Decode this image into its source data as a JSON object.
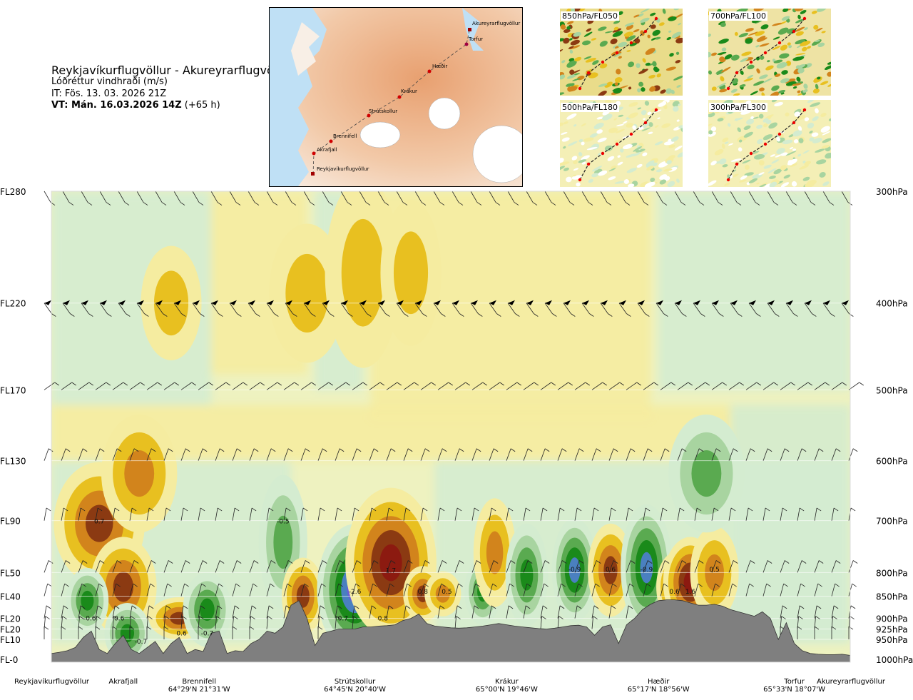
{
  "header": {
    "title": "Reykjavíkurflugvöllur - Akureyrarflugvöllur",
    "variable": "Lóðréttur vindhraði (m/s)",
    "issue_time": "IT: Fös. 13. 03. 2026 21Z",
    "valid_time": "VT: Mán. 16.03.2026 14Z",
    "lead_time": "(+65 h)"
  },
  "route_map": {
    "points": [
      "Reykjavíkurflugvöllur",
      "Akrafjall",
      "Brennifell",
      "Strútskollur",
      "Krákur",
      "Hæðir",
      "Torfur",
      "Akureyrarflugvöllur"
    ]
  },
  "panels": [
    {
      "label": "850hPa/FL050"
    },
    {
      "label": "700hPa/FL100"
    },
    {
      "label": "500hPa/FL180"
    },
    {
      "label": "300hPa/FL300"
    }
  ],
  "colors": {
    "up_strong": "#8b3a12",
    "up_mid": "#d2841c",
    "up_weak": "#e8c020",
    "up_faint": "#f5eca0",
    "down_faint": "#d4ecd0",
    "down_weak": "#a8d4a0",
    "down_mid": "#5aaa50",
    "down_strong": "#1a8a1a",
    "down_vstrong": "#4a80c0",
    "down_extreme": "#6a5ad8",
    "terrain": "#7f7f7f"
  },
  "chart_data": {
    "type": "heatmap",
    "title": "Lóðréttur vindhraði (m/s)",
    "xlabel": "",
    "ylabel": "",
    "x_range": [
      0,
      100
    ],
    "levels": [
      {
        "fl": "FL280",
        "hpa": "300hPa",
        "p": 300
      },
      {
        "fl": "FL220",
        "hpa": "400hPa",
        "p": 400
      },
      {
        "fl": "FL170",
        "hpa": "500hPa",
        "p": 500
      },
      {
        "fl": "FL130",
        "hpa": "600hPa",
        "p": 600
      },
      {
        "fl": "FL90",
        "hpa": "700hPa",
        "p": 700
      },
      {
        "fl": "FL50",
        "hpa": "800hPa",
        "p": 800
      },
      {
        "fl": "FL40",
        "hpa": "850hPa",
        "p": 850
      },
      {
        "fl": "FL20",
        "hpa": "900hPa",
        "p": 900
      },
      {
        "fl": "FL20",
        "hpa": "925hPa",
        "p": 925
      },
      {
        "fl": "FL10",
        "hpa": "950hPa",
        "p": 950
      },
      {
        "fl": "FL-0",
        "hpa": "1000hPa",
        "p": 1000
      }
    ],
    "locations": [
      {
        "name": "Reykjavíkurflugvöllur",
        "coord": "",
        "x": 0
      },
      {
        "name": "Akrafjall",
        "coord": "",
        "x": 9
      },
      {
        "name": "Brennifell",
        "coord": "64°29'N 21°31'W",
        "x": 18.5
      },
      {
        "name": "Strútskollur",
        "coord": "64°45'N 20°40'W",
        "x": 38
      },
      {
        "name": "Krákur",
        "coord": "65°00'N 19°46'W",
        "x": 57
      },
      {
        "name": "Hæðir",
        "coord": "65°17'N 18°56'W",
        "x": 76
      },
      {
        "name": "Torfur",
        "coord": "65°33'N 18°07'W",
        "x": 93
      },
      {
        "name": "Akureyrarflugvöllur",
        "coord": "",
        "x": 100
      }
    ],
    "blobs": [
      {
        "x": 6,
        "p": 705,
        "rx": 3,
        "rp": 95,
        "v": 0.7
      },
      {
        "x": 9,
        "p": 830,
        "rx": 2.2,
        "rp": 90,
        "v": 0.6
      },
      {
        "x": 4.5,
        "p": 860,
        "rx": 1.4,
        "rp": 60,
        "v": -0.6
      },
      {
        "x": 9.5,
        "p": 935,
        "rx": 1.5,
        "rp": 60,
        "v": -0.7
      },
      {
        "x": 16,
        "p": 900,
        "rx": 2,
        "rp": 40,
        "v": 0.6
      },
      {
        "x": 19.5,
        "p": 880,
        "rx": 1.6,
        "rp": 70,
        "v": -0.7
      },
      {
        "x": 29,
        "p": 740,
        "rx": 1.6,
        "rp": 110,
        "v": -0.5
      },
      {
        "x": 31.5,
        "p": 850,
        "rx": 1.4,
        "rp": 70,
        "v": 0.6
      },
      {
        "x": 38,
        "p": 835,
        "rx": 2.5,
        "rp": 120,
        "v": -2.6
      },
      {
        "x": 42.5,
        "p": 780,
        "rx": 3,
        "rp": 130,
        "v": 1.7
      },
      {
        "x": 46.5,
        "p": 845,
        "rx": 1.3,
        "rp": 50,
        "v": 0.8
      },
      {
        "x": 49,
        "p": 845,
        "rx": 1.2,
        "rp": 40,
        "v": 0.5
      },
      {
        "x": 54,
        "p": 840,
        "rx": 1.2,
        "rp": 60,
        "v": -0.6
      },
      {
        "x": 55.5,
        "p": 760,
        "rx": 1.4,
        "rp": 90,
        "v": 0.5
      },
      {
        "x": 59.5,
        "p": 805,
        "rx": 1.4,
        "rp": 90,
        "v": -0.6
      },
      {
        "x": 65.5,
        "p": 795,
        "rx": 1.5,
        "rp": 90,
        "v": -0.9
      },
      {
        "x": 70,
        "p": 795,
        "rx": 1.5,
        "rp": 80,
        "v": 0.6
      },
      {
        "x": 74.5,
        "p": 790,
        "rx": 1.7,
        "rp": 110,
        "v": -0.9
      },
      {
        "x": 78,
        "p": 830,
        "rx": 1.2,
        "rp": 60,
        "v": 0.6
      },
      {
        "x": 80,
        "p": 820,
        "rx": 1.8,
        "rp": 80,
        "v": 1.6
      },
      {
        "x": 83,
        "p": 800,
        "rx": 1.6,
        "rp": 80,
        "v": 0.5
      },
      {
        "x": 82,
        "p": 620,
        "rx": 2.5,
        "rp": 80,
        "v": -0.5
      },
      {
        "x": 11,
        "p": 620,
        "rx": 2.5,
        "rp": 80,
        "v": 0.5
      },
      {
        "x": 32,
        "p": 390,
        "rx": 2.5,
        "rp": 60,
        "v": 0.3
      },
      {
        "x": 39,
        "p": 370,
        "rx": 2.5,
        "rp": 80,
        "v": 0.35
      },
      {
        "x": 45,
        "p": 370,
        "rx": 2,
        "rp": 60,
        "v": 0.3
      },
      {
        "x": 15,
        "p": 400,
        "rx": 2,
        "rp": 50,
        "v": 0.25
      }
    ],
    "value_labels": [
      {
        "x": 6,
        "p": 705,
        "text": "0.7"
      },
      {
        "x": 29,
        "p": 705,
        "text": "-0.5"
      },
      {
        "x": 42.5,
        "p": 800,
        "text": "1.7"
      },
      {
        "x": 38,
        "p": 845,
        "text": "-2.6"
      },
      {
        "x": 46.5,
        "p": 845,
        "text": "0.8"
      },
      {
        "x": 49.5,
        "p": 845,
        "text": "0.5"
      },
      {
        "x": 65.5,
        "p": 798,
        "text": "-0.9"
      },
      {
        "x": 70,
        "p": 798,
        "text": "0.6"
      },
      {
        "x": 74.5,
        "p": 798,
        "text": "-0.9"
      },
      {
        "x": 78,
        "p": 845,
        "text": "0.6"
      },
      {
        "x": 80,
        "p": 845,
        "text": "1.6"
      },
      {
        "x": 83,
        "p": 798,
        "text": "0.5"
      },
      {
        "x": 4.8,
        "p": 905,
        "text": "-0.6"
      },
      {
        "x": 8.5,
        "p": 905,
        "text": "0.6"
      },
      {
        "x": 11.2,
        "p": 960,
        "text": "-0.7"
      },
      {
        "x": 16.3,
        "p": 940,
        "text": "0.6"
      },
      {
        "x": 19.5,
        "p": 940,
        "text": "-0.7"
      },
      {
        "x": 36.5,
        "p": 905,
        "text": "0.7"
      },
      {
        "x": 41.5,
        "p": 905,
        "text": "0.8"
      }
    ],
    "terrain_p": [
      985,
      982,
      978,
      970,
      945,
      930,
      975,
      985,
      960,
      940,
      975,
      985,
      970,
      955,
      985,
      960,
      945,
      985,
      975,
      980,
      935,
      930,
      985,
      978,
      980,
      960,
      950,
      930,
      935,
      920,
      870,
      860,
      900,
      965,
      935,
      930,
      925,
      925,
      925,
      920,
      920,
      918,
      917,
      915,
      905,
      900,
      890,
      912,
      918,
      920,
      922,
      923,
      922,
      920,
      918,
      915,
      912,
      915,
      918,
      920,
      922,
      924,
      925,
      923,
      920,
      917,
      916,
      920,
      940,
      920,
      915,
      960,
      915,
      900,
      880,
      868,
      860,
      858,
      858,
      860,
      865,
      870,
      870,
      868,
      872,
      880,
      885,
      890,
      895,
      885,
      900,
      950,
      910,
      960,
      978,
      985,
      987,
      988,
      988,
      987,
      990
    ]
  }
}
